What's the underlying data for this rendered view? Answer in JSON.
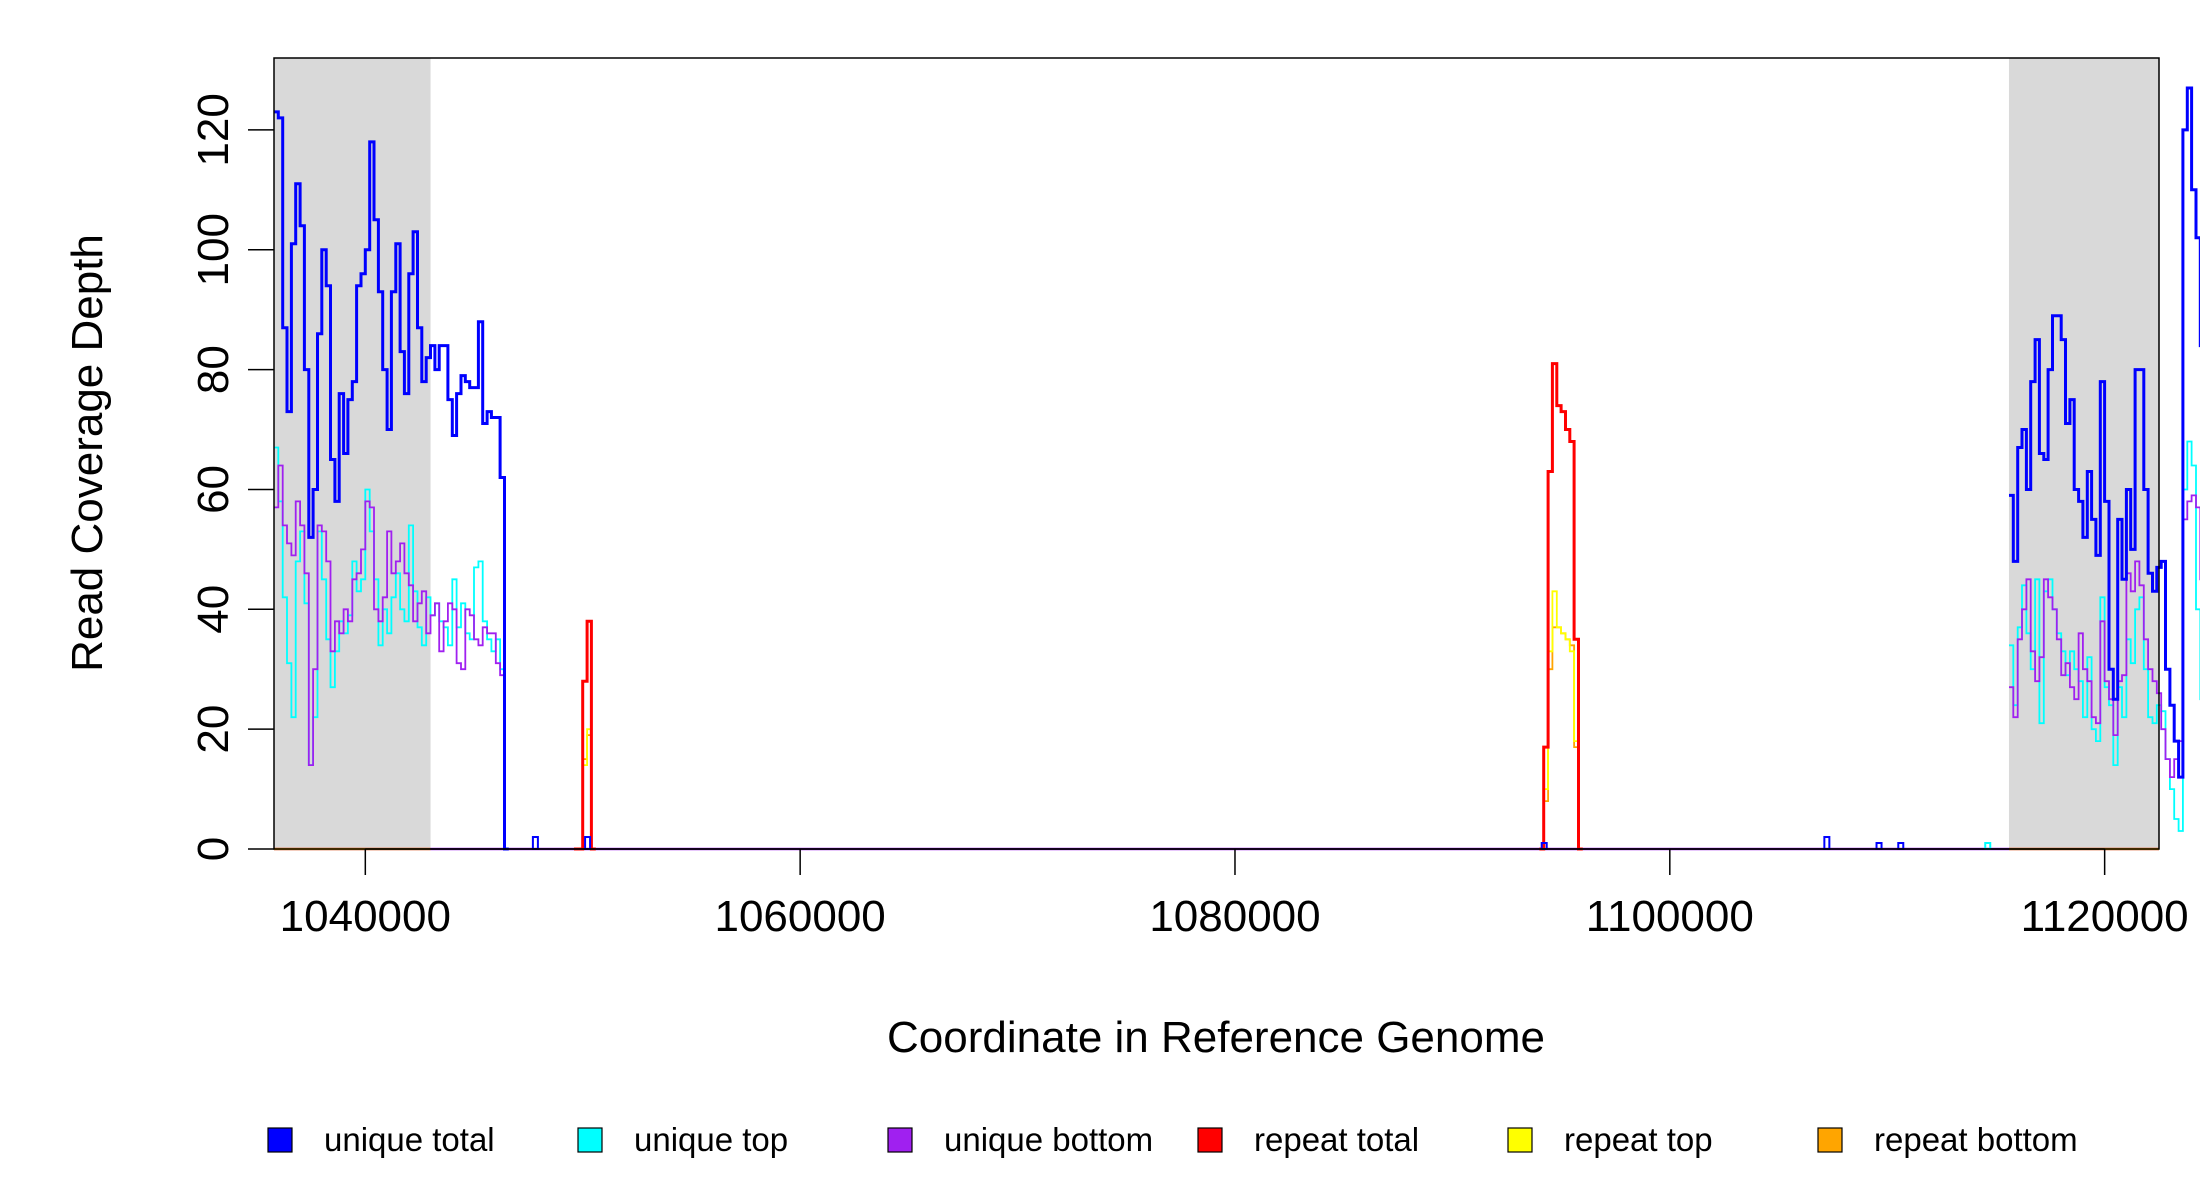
{
  "chart_data": {
    "type": "line",
    "title": "",
    "xlabel": "Coordinate in Reference Genome",
    "ylabel": "Read Coverage Depth",
    "xlim": [
      1035800,
      1122500
    ],
    "ylim": [
      0,
      132
    ],
    "x_ticks": [
      1040000,
      1060000,
      1080000,
      1100000,
      1120000
    ],
    "x_tick_labels": [
      "1040000",
      "1060000",
      "1080000",
      "1100000",
      "1120000"
    ],
    "y_ticks": [
      0,
      20,
      40,
      60,
      80,
      100,
      120
    ],
    "y_tick_labels": [
      "0",
      "20",
      "40",
      "60",
      "80",
      "100",
      "120"
    ],
    "shaded_regions": [
      [
        1035800,
        1043000
      ],
      [
        1115600,
        1122500
      ]
    ],
    "shade_color": "#d9d9d9",
    "grid": false,
    "legend_position": "bottom",
    "series": [
      {
        "name": "unique total",
        "color": "#0000ff",
        "step_width": 200,
        "x_start": 1035800,
        "values": [
          123,
          122,
          87,
          73,
          101,
          111,
          104,
          80,
          52,
          60,
          86,
          100,
          94,
          65,
          58,
          76,
          66,
          75,
          78,
          94,
          96,
          100,
          118,
          105,
          93,
          80,
          70,
          93,
          101,
          83,
          76,
          96,
          103,
          87,
          78,
          82,
          84,
          80,
          84,
          84,
          75,
          69,
          76,
          79,
          78,
          77,
          77,
          88,
          71,
          73,
          72,
          72,
          62,
          0
        ]
      },
      {
        "name": "unique top",
        "color": "#00ffff",
        "step_width": 200,
        "x_start": 1035800,
        "values": [
          67,
          58,
          42,
          31,
          22,
          48,
          53,
          41,
          14,
          22,
          53,
          45,
          35,
          27,
          33,
          38,
          36,
          39,
          48,
          43,
          45,
          60,
          53,
          45,
          34,
          40,
          36,
          42,
          46,
          40,
          38,
          54,
          43,
          37,
          34,
          42,
          39,
          41,
          38,
          37,
          34,
          45,
          37,
          41,
          36,
          35,
          47,
          48,
          38,
          35,
          33,
          35,
          30,
          0
        ]
      },
      {
        "name": "unique bottom",
        "color": "#a020f0",
        "step_width": 200,
        "x_start": 1035800,
        "values": [
          57,
          64,
          54,
          51,
          49,
          58,
          54,
          46,
          14,
          30,
          54,
          53,
          48,
          33,
          38,
          36,
          40,
          38,
          45,
          46,
          50,
          58,
          57,
          40,
          38,
          42,
          53,
          46,
          48,
          51,
          46,
          44,
          38,
          41,
          43,
          36,
          39,
          41,
          33,
          38,
          41,
          40,
          31,
          30,
          40,
          39,
          35,
          34,
          37,
          36,
          36,
          31,
          29,
          0
        ]
      },
      {
        "name": "repeat total",
        "color": "#ff0000",
        "step_width": 200,
        "x_start": 1049600,
        "values": [
          0,
          0,
          28,
          38,
          0
        ]
      },
      {
        "name": "repeat top",
        "color": "#ffff00",
        "step_width": 200,
        "x_start": 1049600,
        "values": [
          0,
          0,
          14,
          20,
          0
        ]
      },
      {
        "name": "repeat bottom",
        "color": "#ffa500",
        "step_width": 200,
        "x_start": 1049600,
        "values": [
          0,
          0,
          15,
          19,
          0
        ]
      }
    ],
    "series_extra": [
      {
        "name": "unique total",
        "color": "#0000ff",
        "step_width": 200,
        "x_start": 1115600,
        "values": [
          59,
          48,
          67,
          70,
          60,
          78,
          85,
          66,
          65,
          80,
          89,
          89,
          85,
          71,
          75,
          60,
          58,
          52,
          63,
          55,
          49,
          78,
          58,
          30,
          25,
          55,
          45,
          60,
          50,
          80,
          80,
          60,
          46,
          43,
          47,
          48,
          30,
          24,
          18,
          12,
          120,
          127,
          110,
          102,
          84,
          0
        ]
      },
      {
        "name": "unique top",
        "color": "#00ffff",
        "step_width": 200,
        "x_start": 1115600,
        "values": [
          34,
          24,
          37,
          44,
          36,
          30,
          45,
          21,
          43,
          45,
          40,
          36,
          33,
          29,
          33,
          30,
          28,
          22,
          32,
          20,
          18,
          42,
          27,
          24,
          14,
          27,
          22,
          35,
          31,
          40,
          42,
          30,
          22,
          21,
          24,
          23,
          15,
          10,
          5,
          3,
          60,
          68,
          64,
          40,
          25,
          21
        ]
      },
      {
        "name": "unique bottom",
        "color": "#a020f0",
        "step_width": 200,
        "x_start": 1115600,
        "values": [
          27,
          22,
          35,
          40,
          45,
          33,
          28,
          32,
          45,
          42,
          40,
          35,
          29,
          31,
          27,
          25,
          36,
          30,
          28,
          22,
          21,
          38,
          28,
          25,
          19,
          28,
          29,
          46,
          43,
          48,
          44,
          35,
          30,
          28,
          26,
          20,
          15,
          12,
          15,
          18,
          55,
          58,
          59,
          57,
          45,
          37
        ]
      },
      {
        "name": "repeat total",
        "color": "#ff0000",
        "step_width": 200,
        "x_start": 1094000,
        "values": [
          0,
          17,
          63,
          81,
          74,
          73,
          70,
          68,
          35,
          0
        ]
      },
      {
        "name": "repeat top",
        "color": "#ffff00",
        "step_width": 200,
        "x_start": 1094000,
        "values": [
          0,
          10,
          33,
          43,
          37,
          36,
          35,
          33,
          18,
          0
        ]
      },
      {
        "name": "repeat bottom",
        "color": "#ffa500",
        "step_width": 200,
        "x_start": 1094000,
        "values": [
          0,
          8,
          30,
          37,
          37,
          36,
          35,
          34,
          17,
          0
        ]
      }
    ],
    "minor_blips": [
      {
        "x": 1047800,
        "value": 2,
        "color": "#0000ff"
      },
      {
        "x": 1050200,
        "value": 2,
        "color": "#0000ff"
      },
      {
        "x": 1094200,
        "value": 1,
        "color": "#0000ff"
      },
      {
        "x": 1107200,
        "value": 2,
        "color": "#0000ff"
      },
      {
        "x": 1109600,
        "value": 1,
        "color": "#0000ff"
      },
      {
        "x": 1110600,
        "value": 1,
        "color": "#0000ff"
      },
      {
        "x": 1114600,
        "value": 1,
        "color": "#00ffff"
      }
    ],
    "legend": [
      {
        "label": "unique total",
        "color": "#0000ff"
      },
      {
        "label": "unique top",
        "color": "#00ffff"
      },
      {
        "label": "unique bottom",
        "color": "#a020f0"
      },
      {
        "label": "repeat total",
        "color": "#ff0000"
      },
      {
        "label": "repeat top",
        "color": "#ffff00"
      },
      {
        "label": "repeat bottom",
        "color": "#ffa500"
      }
    ]
  }
}
